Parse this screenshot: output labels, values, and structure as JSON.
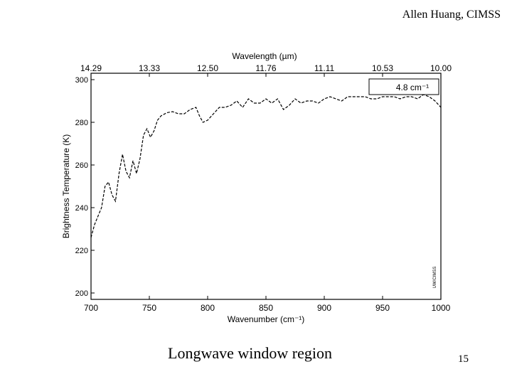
{
  "slide": {
    "author": "Allen Huang, CIMSS",
    "caption": "Longwave window region",
    "page_number": "15"
  },
  "chart_data": {
    "type": "line",
    "x_label": "Wavenumber (cm⁻¹)",
    "y_label": "Brightness Temperature (K)",
    "top_axis_label": "Wavelength (µm)",
    "xlim": [
      700,
      1000
    ],
    "ylim": [
      197,
      303
    ],
    "x_ticks": [
      700,
      750,
      800,
      850,
      900,
      950,
      1000
    ],
    "y_ticks": [
      200,
      220,
      240,
      260,
      280,
      300
    ],
    "top_ticks": [
      {
        "label": "14.29",
        "wavenumber": 700
      },
      {
        "label": "13.33",
        "wavenumber": 750
      },
      {
        "label": "12.50",
        "wavenumber": 800
      },
      {
        "label": "11.76",
        "wavenumber": 850
      },
      {
        "label": "11.11",
        "wavenumber": 900
      },
      {
        "label": "10.53",
        "wavenumber": 950
      },
      {
        "label": "10.00",
        "wavenumber": 1000
      }
    ],
    "legend": "4.8 cm⁻¹",
    "watermark": "UW/CIMSS",
    "line_style": "dashed",
    "grid": false,
    "series": [
      {
        "x": [
          700,
          703,
          706,
          709,
          712,
          715,
          718,
          721,
          724,
          727,
          730,
          733,
          736,
          739,
          742,
          745,
          748,
          751,
          754,
          757,
          760,
          765,
          770,
          775,
          780,
          785,
          790,
          793,
          796,
          800,
          805,
          810,
          815,
          820,
          825,
          830,
          835,
          840,
          845,
          850,
          855,
          860,
          865,
          870,
          875,
          880,
          885,
          890,
          895,
          900,
          905,
          910,
          915,
          920,
          925,
          930,
          935,
          940,
          945,
          950,
          955,
          960,
          965,
          970,
          975,
          980,
          985,
          990,
          995,
          1000
        ],
        "y": [
          226,
          232,
          236,
          240,
          250,
          252,
          246,
          243,
          256,
          265,
          257,
          254,
          262,
          256,
          263,
          274,
          277,
          273,
          276,
          281,
          283,
          284.5,
          285,
          284,
          284,
          286,
          287,
          283,
          280,
          281,
          284,
          287,
          287,
          288,
          290,
          287,
          291,
          289,
          289,
          291,
          289,
          291,
          286,
          288,
          291,
          289,
          290,
          290,
          289,
          291,
          292,
          291,
          290,
          292,
          292,
          292,
          292,
          291,
          291,
          292,
          292,
          292,
          291,
          292,
          292,
          291,
          293,
          292,
          290,
          287
        ]
      }
    ]
  }
}
